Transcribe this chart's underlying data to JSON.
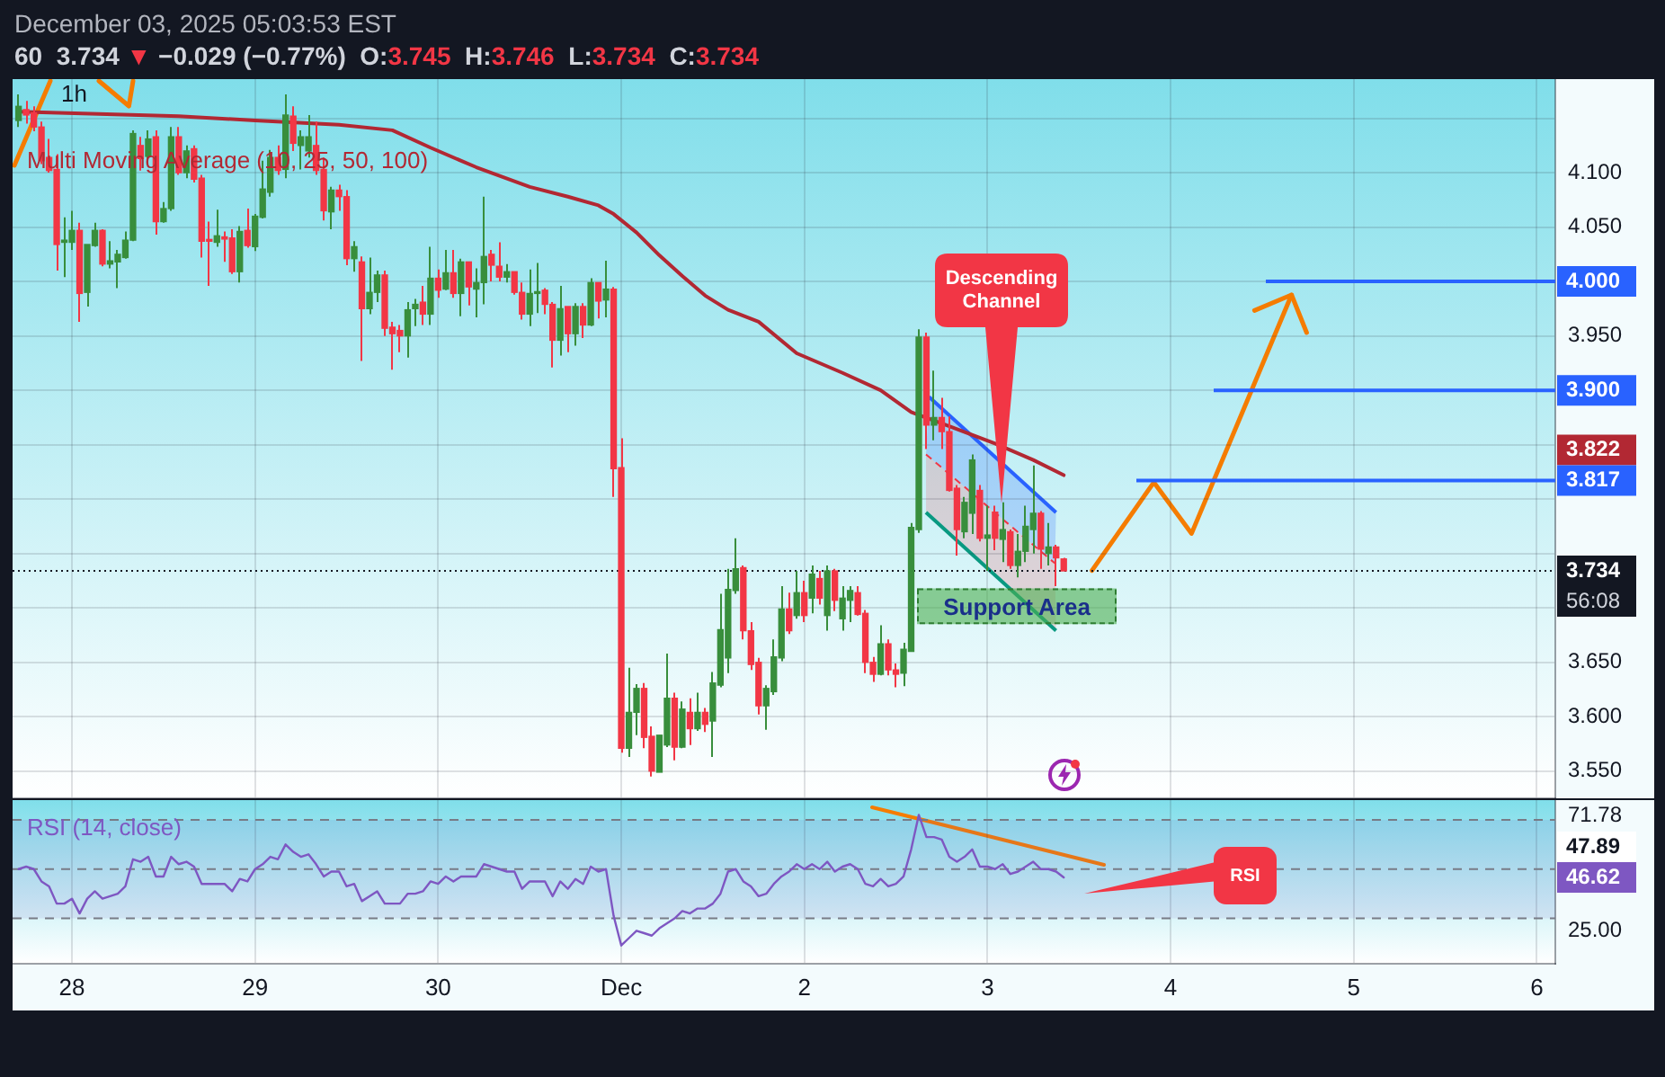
{
  "chart_data": [
    {
      "type": "candlestick",
      "title": "1h",
      "subtitle": "60  3.734 ▼ −0.029 (−0.77%)  O:3.745  H:3.746  L:3.734  C:3.734",
      "annotations": [
        "December 03, 2025 05:03:53 EST",
        "Descending Channel",
        "56:08",
        "3.822"
      ],
      "x": [
        "2025-11-27T17:00",
        "2025-11-27T18:00",
        "2025-11-27T19:00",
        "2025-11-27T20:00",
        "2025-11-27T21:00",
        "2025-11-27T22:00",
        "2025-11-27T23:00",
        "2025-11-28T00:00",
        "2025-11-28T01:00",
        "2025-11-28T02:00",
        "2025-11-28T03:00",
        "2025-11-28T04:00",
        "2025-11-28T05:00",
        "2025-11-28T06:00",
        "2025-11-28T07:00",
        "2025-11-28T08:00",
        "2025-11-28T09:00",
        "2025-11-28T10:00",
        "2025-11-28T11:00",
        "2025-11-28T12:00",
        "2025-11-28T13:00",
        "2025-11-28T14:00",
        "2025-11-28T15:00",
        "2025-11-28T16:00",
        "2025-11-28T17:00",
        "2025-11-28T18:00",
        "2025-11-28T19:00",
        "2025-11-28T20:00",
        "2025-11-28T21:00",
        "2025-11-28T22:00",
        "2025-11-28T23:00",
        "2025-11-29T00:00",
        "2025-11-29T01:00",
        "2025-11-29T02:00",
        "2025-11-29T03:00",
        "2025-11-29T04:00",
        "2025-11-29T05:00",
        "2025-11-29T06:00",
        "2025-11-29T07:00",
        "2025-11-29T08:00",
        "2025-11-29T09:00",
        "2025-11-29T10:00",
        "2025-11-29T11:00",
        "2025-11-29T12:00",
        "2025-11-29T13:00",
        "2025-11-29T14:00",
        "2025-11-29T15:00",
        "2025-11-29T16:00",
        "2025-11-29T17:00",
        "2025-11-29T18:00",
        "2025-11-29T19:00",
        "2025-11-29T20:00",
        "2025-11-29T21:00",
        "2025-11-29T22:00",
        "2025-11-29T23:00",
        "2025-11-30T00:00",
        "2025-11-30T01:00",
        "2025-11-30T02:00",
        "2025-11-30T03:00",
        "2025-11-30T04:00",
        "2025-11-30T05:00",
        "2025-11-30T06:00",
        "2025-11-30T07:00",
        "2025-11-30T08:00",
        "2025-11-30T09:00",
        "2025-11-30T10:00",
        "2025-11-30T11:00",
        "2025-11-30T12:00",
        "2025-11-30T13:00",
        "2025-11-30T14:00",
        "2025-11-30T15:00",
        "2025-11-30T16:00",
        "2025-11-30T17:00",
        "2025-11-30T18:00",
        "2025-11-30T19:00",
        "2025-11-30T20:00",
        "2025-11-30T21:00",
        "2025-11-30T22:00",
        "2025-11-30T23:00",
        "2025-12-01T00:00",
        "2025-12-01T01:00",
        "2025-12-01T02:00",
        "2025-12-01T03:00",
        "2025-12-01T04:00",
        "2025-12-01T05:00",
        "2025-12-01T06:00",
        "2025-12-01T07:00",
        "2025-12-01T08:00",
        "2025-12-01T09:00",
        "2025-12-01T10:00",
        "2025-12-01T11:00",
        "2025-12-01T12:00",
        "2025-12-01T13:00",
        "2025-12-01T14:00",
        "2025-12-01T15:00",
        "2025-12-01T16:00",
        "2025-12-01T17:00",
        "2025-12-01T18:00",
        "2025-12-01T19:00",
        "2025-12-01T20:00",
        "2025-12-01T21:00",
        "2025-12-01T22:00",
        "2025-12-01T23:00",
        "2025-12-02T00:00",
        "2025-12-02T01:00",
        "2025-12-02T02:00",
        "2025-12-02T03:00",
        "2025-12-02T04:00",
        "2025-12-02T05:00",
        "2025-12-02T06:00",
        "2025-12-02T07:00",
        "2025-12-02T08:00",
        "2025-12-02T09:00",
        "2025-12-02T10:00",
        "2025-12-02T11:00",
        "2025-12-02T12:00",
        "2025-12-02T13:00",
        "2025-12-02T14:00",
        "2025-12-02T15:00",
        "2025-12-02T16:00",
        "2025-12-02T17:00",
        "2025-12-02T18:00",
        "2025-12-02T19:00",
        "2025-12-02T20:00",
        "2025-12-02T21:00",
        "2025-12-02T22:00",
        "2025-12-02T23:00",
        "2025-12-03T00:00",
        "2025-12-03T01:00",
        "2025-12-03T02:00",
        "2025-12-03T03:00",
        "2025-12-03T04:00",
        "2025-12-03T05:00",
        "2025-12-03T06:00",
        "2025-12-03T07:00",
        "2025-12-03T08:00",
        "2025-12-03T09:00",
        "2025-12-03T10:00"
      ],
      "ohlc": [
        [
          4.148,
          4.172,
          4.142,
          4.161
        ],
        [
          4.158,
          4.166,
          4.145,
          4.153
        ],
        [
          4.155,
          4.161,
          4.138,
          4.142
        ],
        [
          4.142,
          4.147,
          4.108,
          4.111
        ],
        [
          4.114,
          4.131,
          4.1,
          4.102
        ],
        [
          4.103,
          4.117,
          4.01,
          4.034
        ],
        [
          4.036,
          4.059,
          4.004,
          4.038
        ],
        [
          4.036,
          4.065,
          4.029,
          4.047
        ],
        [
          4.047,
          4.054,
          3.963,
          3.989
        ],
        [
          3.99,
          4.034,
          3.977,
          4.034
        ],
        [
          4.033,
          4.054,
          4.032,
          4.047
        ],
        [
          4.047,
          4.048,
          4.014,
          4.016
        ],
        [
          4.016,
          4.037,
          4.012,
          4.019
        ],
        [
          4.018,
          4.029,
          3.994,
          4.025
        ],
        [
          4.022,
          4.046,
          4.021,
          4.038
        ],
        [
          4.038,
          4.139,
          4.037,
          4.136
        ],
        [
          4.125,
          4.133,
          4.102,
          4.113
        ],
        [
          4.115,
          4.139,
          4.109,
          4.131
        ],
        [
          4.133,
          4.139,
          4.043,
          4.055
        ],
        [
          4.055,
          4.073,
          4.054,
          4.067
        ],
        [
          4.067,
          4.142,
          4.065,
          4.133
        ],
        [
          4.133,
          4.142,
          4.098,
          4.1
        ],
        [
          4.1,
          4.125,
          4.095,
          4.12
        ],
        [
          4.122,
          4.125,
          4.091,
          4.094
        ],
        [
          4.095,
          4.098,
          4.022,
          4.037
        ],
        [
          4.038,
          4.055,
          3.996,
          4.037
        ],
        [
          4.036,
          4.066,
          4.032,
          4.042
        ],
        [
          4.041,
          4.046,
          4.018,
          4.039
        ],
        [
          4.04,
          4.048,
          4.007,
          4.009
        ],
        [
          4.009,
          4.051,
          3.999,
          4.046
        ],
        [
          4.047,
          4.067,
          4.031,
          4.033
        ],
        [
          4.032,
          4.062,
          4.028,
          4.06
        ],
        [
          4.059,
          4.111,
          4.058,
          4.085
        ],
        [
          4.082,
          4.121,
          4.078,
          4.114
        ],
        [
          4.114,
          4.125,
          4.098,
          4.102
        ],
        [
          4.103,
          4.172,
          4.095,
          4.153
        ],
        [
          4.152,
          4.161,
          4.12,
          4.127
        ],
        [
          4.125,
          4.139,
          4.103,
          4.133
        ],
        [
          4.12,
          4.153,
          4.114,
          4.133
        ],
        [
          4.125,
          4.147,
          4.098,
          4.102
        ],
        [
          4.103,
          4.114,
          4.056,
          4.065
        ],
        [
          4.064,
          4.087,
          4.048,
          4.084
        ],
        [
          4.084,
          4.089,
          4.065,
          4.078
        ],
        [
          4.078,
          4.084,
          4.015,
          4.021
        ],
        [
          4.021,
          4.037,
          4.009,
          4.032
        ],
        [
          4.018,
          4.023,
          3.927,
          3.975
        ],
        [
          3.975,
          4.022,
          3.97,
          3.99
        ],
        [
          3.99,
          4.01,
          3.981,
          4.006
        ],
        [
          4.006,
          4.01,
          3.95,
          3.957
        ],
        [
          3.958,
          3.963,
          3.919,
          3.952
        ],
        [
          3.955,
          3.96,
          3.935,
          3.95
        ],
        [
          3.95,
          3.981,
          3.93,
          3.974
        ],
        [
          3.975,
          3.984,
          3.959,
          3.979
        ],
        [
          3.981,
          3.996,
          3.96,
          3.97
        ],
        [
          3.97,
          4.032,
          3.96,
          4.003
        ],
        [
          4.003,
          4.011,
          3.985,
          3.992
        ],
        [
          3.993,
          4.029,
          3.992,
          4.008
        ],
        [
          4.008,
          4.029,
          3.985,
          3.989
        ],
        [
          3.989,
          4.021,
          3.968,
          4.018
        ],
        [
          4.018,
          4.018,
          3.978,
          3.995
        ],
        [
          3.993,
          4.012,
          3.967,
          3.999
        ],
        [
          3.999,
          4.078,
          3.979,
          4.023
        ],
        [
          4.025,
          4.029,
          4.0,
          4.015
        ],
        [
          4.014,
          4.036,
          4.0,
          4.004
        ],
        [
          4.004,
          4.016,
          3.999,
          4.009
        ],
        [
          4.009,
          4.009,
          3.988,
          3.99
        ],
        [
          3.99,
          3.999,
          3.965,
          3.97
        ],
        [
          3.97,
          4.011,
          3.959,
          3.989
        ],
        [
          3.989,
          4.017,
          3.971,
          3.99
        ],
        [
          3.992,
          3.994,
          3.97,
          3.979
        ],
        [
          3.979,
          3.981,
          3.921,
          3.946
        ],
        [
          3.946,
          3.996,
          3.932,
          3.975
        ],
        [
          3.977,
          3.977,
          3.935,
          3.952
        ],
        [
          3.952,
          3.98,
          3.941,
          3.977
        ],
        [
          3.977,
          3.98,
          3.948,
          3.96
        ],
        [
          3.96,
          4.003,
          3.959,
          3.999
        ],
        [
          3.999,
          3.999,
          3.966,
          3.982
        ],
        [
          3.983,
          4.019,
          3.967,
          3.993
        ],
        [
          3.993,
          3.995,
          3.802,
          3.828
        ],
        [
          3.829,
          3.856,
          3.567,
          3.571
        ],
        [
          3.571,
          3.645,
          3.563,
          3.604
        ],
        [
          3.604,
          3.63,
          3.583,
          3.626
        ],
        [
          3.626,
          3.631,
          3.571,
          3.581
        ],
        [
          3.582,
          3.591,
          3.545,
          3.55
        ],
        [
          3.549,
          3.583,
          3.549,
          3.583
        ],
        [
          3.574,
          3.658,
          3.572,
          3.617
        ],
        [
          3.617,
          3.622,
          3.56,
          3.572
        ],
        [
          3.572,
          3.614,
          3.571,
          3.607
        ],
        [
          3.604,
          3.617,
          3.574,
          3.589
        ],
        [
          3.589,
          3.622,
          3.587,
          3.604
        ],
        [
          3.604,
          3.608,
          3.586,
          3.593
        ],
        [
          3.596,
          3.641,
          3.563,
          3.631
        ],
        [
          3.629,
          3.713,
          3.627,
          3.68
        ],
        [
          3.654,
          3.736,
          3.64,
          3.717
        ],
        [
          3.716,
          3.764,
          3.713,
          3.736
        ],
        [
          3.737,
          3.739,
          3.671,
          3.679
        ],
        [
          3.679,
          3.687,
          3.643,
          3.648
        ],
        [
          3.65,
          3.654,
          3.602,
          3.61
        ],
        [
          3.61,
          3.629,
          3.588,
          3.626
        ],
        [
          3.623,
          3.671,
          3.62,
          3.655
        ],
        [
          3.654,
          3.72,
          3.651,
          3.699
        ],
        [
          3.699,
          3.714,
          3.676,
          3.679
        ],
        [
          3.693,
          3.734,
          3.69,
          3.714
        ],
        [
          3.714,
          3.725,
          3.687,
          3.693
        ],
        [
          3.709,
          3.739,
          3.695,
          3.731
        ],
        [
          3.727,
          3.734,
          3.703,
          3.709
        ],
        [
          3.693,
          3.739,
          3.679,
          3.734
        ],
        [
          3.734,
          3.736,
          3.697,
          3.707
        ],
        [
          3.69,
          3.72,
          3.679,
          3.709
        ],
        [
          3.707,
          3.72,
          3.687,
          3.716
        ],
        [
          3.714,
          3.72,
          3.693,
          3.694
        ],
        [
          3.695,
          3.698,
          3.64,
          3.65
        ],
        [
          3.65,
          3.655,
          3.632,
          3.639
        ],
        [
          3.639,
          3.684,
          3.638,
          3.667
        ],
        [
          3.667,
          3.671,
          3.638,
          3.643
        ],
        [
          3.643,
          3.649,
          3.627,
          3.639
        ],
        [
          3.64,
          3.668,
          3.628,
          3.662
        ],
        [
          3.66,
          3.778,
          3.66,
          3.774
        ],
        [
          3.772,
          3.956,
          3.769,
          3.949
        ],
        [
          3.949,
          3.953,
          3.846,
          3.868
        ],
        [
          3.868,
          3.918,
          3.854,
          3.875
        ],
        [
          3.875,
          3.893,
          3.846,
          3.862
        ],
        [
          3.862,
          3.876,
          3.807,
          3.808
        ],
        [
          3.81,
          3.813,
          3.748,
          3.772
        ],
        [
          3.77,
          3.802,
          3.764,
          3.797
        ],
        [
          3.787,
          3.841,
          3.768,
          3.836
        ],
        [
          3.808,
          3.813,
          3.761,
          3.764
        ],
        [
          3.764,
          3.794,
          3.734,
          3.767
        ],
        [
          3.788,
          3.794,
          3.753,
          3.764
        ],
        [
          3.763,
          3.797,
          3.742,
          3.772
        ],
        [
          3.77,
          3.772,
          3.736,
          3.739
        ],
        [
          3.739,
          3.768,
          3.728,
          3.752
        ],
        [
          3.752,
          3.794,
          3.742,
          3.775
        ],
        [
          3.772,
          3.831,
          3.75,
          3.787
        ],
        [
          3.787,
          3.789,
          3.736,
          3.754
        ],
        [
          3.75,
          3.778,
          3.739,
          3.756
        ],
        [
          3.756,
          3.758,
          3.72,
          3.746
        ],
        [
          3.745,
          3.746,
          3.734,
          3.734
        ]
      ],
      "colors": [
        "#388e3c",
        "#f23645",
        "#f23645",
        "#f23645",
        "#f23645",
        "#f23645",
        "#388e3c",
        "#388e3c",
        "#f23645",
        "#388e3c",
        "#388e3c",
        "#f23645",
        "#388e3c",
        "#388e3c",
        "#388e3c",
        "#388e3c",
        "#f23645",
        "#388e3c",
        "#f23645",
        "#388e3c",
        "#388e3c",
        "#f23645",
        "#388e3c",
        "#f23645",
        "#f23645",
        "#f23645",
        "#388e3c",
        "#f23645",
        "#f23645",
        "#388e3c",
        "#f23645",
        "#388e3c",
        "#388e3c",
        "#388e3c",
        "#f23645",
        "#388e3c",
        "#f23645",
        "#388e3c",
        "#388e3c",
        "#f23645",
        "#f23645",
        "#388e3c",
        "#f23645",
        "#f23645",
        "#388e3c",
        "#f23645",
        "#388e3c",
        "#388e3c",
        "#f23645",
        "#f23645",
        "#f23645",
        "#388e3c",
        "#388e3c",
        "#f23645",
        "#388e3c",
        "#f23645",
        "#388e3c",
        "#f23645",
        "#388e3c",
        "#f23645",
        "#388e3c",
        "#388e3c",
        "#f23645",
        "#f23645",
        "#388e3c",
        "#f23645",
        "#f23645",
        "#388e3c",
        "#388e3c",
        "#f23645",
        "#f23645",
        "#388e3c",
        "#f23645",
        "#388e3c",
        "#f23645",
        "#388e3c",
        "#f23645",
        "#388e3c",
        "#f23645",
        "#f23645",
        "#388e3c",
        "#388e3c",
        "#f23645",
        "#f23645",
        "#388e3c",
        "#388e3c",
        "#f23645",
        "#388e3c",
        "#f23645",
        "#388e3c",
        "#f23645",
        "#388e3c",
        "#388e3c",
        "#388e3c",
        "#388e3c",
        "#f23645",
        "#f23645",
        "#f23645",
        "#388e3c",
        "#388e3c",
        "#388e3c",
        "#f23645",
        "#388e3c",
        "#f23645",
        "#388e3c",
        "#f23645",
        "#388e3c",
        "#f23645",
        "#388e3c",
        "#388e3c",
        "#f23645",
        "#f23645",
        "#f23645",
        "#388e3c",
        "#f23645",
        "#f23645",
        "#388e3c",
        "#388e3c",
        "#388e3c",
        "#f23645",
        "#388e3c",
        "#f23645",
        "#f23645",
        "#f23645",
        "#388e3c",
        "#388e3c",
        "#f23645",
        "#388e3c",
        "#f23645",
        "#388e3c",
        "#f23645",
        "#388e3c",
        "#388e3c",
        "#388e3c",
        "#f23645",
        "#388e3c",
        "#f23645",
        "#f23645"
      ],
      "series": [
        {
          "type": "line",
          "name": "Multi Moving Average (10, 25, 50, 100)",
          "color": "#b22833",
          "x": [
            "2025-11-27T17:00",
            "2025-11-28T14:00",
            "2025-11-29T00:00",
            "2025-11-29T11:00",
            "2025-11-29T18:00",
            "2025-11-29T23:00",
            "2025-11-30T05:00",
            "2025-11-30T12:00",
            "2025-11-30T17:00",
            "2025-11-30T21:00",
            "2025-11-30T23:00",
            "2025-12-01T02:00",
            "2025-12-01T05:00",
            "2025-12-01T08:00",
            "2025-12-01T11:00",
            "2025-12-01T14:00",
            "2025-12-01T18:00",
            "2025-12-01T23:00",
            "2025-12-02T05:00",
            "2025-12-02T10:00",
            "2025-12-02T14:00",
            "2025-12-02T19:00",
            "2025-12-03T01:00",
            "2025-12-03T06:00",
            "2025-12-03T10:00"
          ],
          "values": [
            4.156,
            4.152,
            4.148,
            4.144,
            4.139,
            4.123,
            4.105,
            4.087,
            4.078,
            4.07,
            4.062,
            4.045,
            4.024,
            4.005,
            3.987,
            3.974,
            3.963,
            3.934,
            3.916,
            3.9,
            3.88,
            3.867,
            3.851,
            3.836,
            3.822
          ]
        }
      ],
      "xlim": [
        "2025-11-27T16:13",
        "2025-12-06T02:26"
      ],
      "xticks": [
        {
          "value": "2025-11-28",
          "label": null
        },
        {
          "value": "2025-11-29",
          "label": null
        },
        {
          "value": "2025-11-30",
          "label": null
        },
        {
          "value": "2025-12-01",
          "label": null
        },
        {
          "value": "2025-12-02",
          "label": null
        },
        {
          "value": "2025-12-03",
          "label": null
        },
        {
          "value": "2025-12-04",
          "label": null
        },
        {
          "value": "2025-12-05",
          "label": null
        },
        {
          "value": "2025-12-06",
          "label": null
        }
      ],
      "ylim": [
        3.525,
        4.186
      ],
      "yticks": [
        {
          "value": 3.55,
          "label": "3.550"
        },
        {
          "value": 3.6,
          "label": "3.600"
        },
        {
          "value": 3.65,
          "label": "3.650"
        },
        {
          "value": 3.7,
          "label": null
        },
        {
          "value": 3.75,
          "label": null
        },
        {
          "value": 3.8,
          "label": null
        },
        {
          "value": 3.85,
          "label": null
        },
        {
          "value": 3.9,
          "label": null
        },
        {
          "value": 3.95,
          "label": "3.950"
        },
        {
          "value": 4.0,
          "label": null
        },
        {
          "value": 4.05,
          "label": "4.050"
        },
        {
          "value": 4.1,
          "label": "4.100"
        },
        {
          "value": 4.15,
          "label": null
        }
      ],
      "ref_lines": [
        {
          "axis": "y",
          "value": 4.0,
          "label": "4.000",
          "color": "#2962ff"
        },
        {
          "axis": "y",
          "value": 3.9,
          "label": "3.900",
          "color": "#2962ff"
        },
        {
          "axis": "y",
          "value": 3.817,
          "label": "3.817",
          "color": "#2962ff"
        },
        {
          "axis": "y",
          "value": 3.734,
          "label": "3.734",
          "color": "#131722",
          "line_style": "dotted"
        }
      ],
      "bands": [
        {
          "axis": "y",
          "from": 3.685,
          "to": 3.718,
          "label": "Support Area",
          "color": "#4caf50"
        }
      ],
      "grid": true,
      "legend": "top left",
      "tick_labels": "y"
    },
    {
      "type": "line",
      "series": [
        {
          "name": "RSI (14, close)",
          "color": "#7e57c2",
          "values": [
            50,
            51,
            50,
            45,
            43,
            36,
            36,
            38,
            32,
            38,
            41,
            38,
            39,
            40,
            43,
            54,
            53,
            55,
            47,
            47,
            55,
            52,
            53,
            51,
            44,
            44,
            44,
            44,
            41,
            46,
            45,
            50,
            52,
            55,
            54,
            60,
            57,
            55,
            56,
            52,
            47,
            49,
            49,
            43,
            44,
            37,
            39,
            41,
            36,
            36,
            36,
            40,
            40,
            41,
            45,
            44,
            47,
            45,
            47,
            47,
            47,
            52,
            51,
            50,
            49,
            49,
            42,
            45,
            45,
            45,
            39,
            45,
            42,
            46,
            44,
            51,
            49,
            50,
            31,
            19,
            22,
            25,
            24,
            23,
            26,
            28,
            30,
            33,
            32,
            34,
            34,
            36,
            40,
            49,
            50,
            45,
            43,
            39,
            40,
            44,
            47,
            49,
            52,
            50,
            52,
            50,
            53,
            49,
            51,
            52,
            50,
            44,
            43,
            46,
            43,
            44,
            47,
            58,
            72,
            63,
            63,
            62,
            55,
            53,
            55,
            58,
            51,
            51,
            50,
            52,
            48,
            49,
            51,
            53,
            50,
            50,
            49,
            46.62
          ]
        }
      ],
      "x": [
        "2025-11-27T17:00",
        "2025-11-27T18:00",
        "2025-11-27T19:00",
        "2025-11-27T20:00",
        "2025-11-27T21:00",
        "2025-11-27T22:00",
        "2025-11-27T23:00",
        "2025-11-28T00:00",
        "2025-11-28T01:00",
        "2025-11-28T02:00",
        "2025-11-28T03:00",
        "2025-11-28T04:00",
        "2025-11-28T05:00",
        "2025-11-28T06:00",
        "2025-11-28T07:00",
        "2025-11-28T08:00",
        "2025-11-28T09:00",
        "2025-11-28T10:00",
        "2025-11-28T11:00",
        "2025-11-28T12:00",
        "2025-11-28T13:00",
        "2025-11-28T14:00",
        "2025-11-28T15:00",
        "2025-11-28T16:00",
        "2025-11-28T17:00",
        "2025-11-28T18:00",
        "2025-11-28T19:00",
        "2025-11-28T20:00",
        "2025-11-28T21:00",
        "2025-11-28T22:00",
        "2025-11-28T23:00",
        "2025-11-29T00:00",
        "2025-11-29T01:00",
        "2025-11-29T02:00",
        "2025-11-29T03:00",
        "2025-11-29T04:00",
        "2025-11-29T05:00",
        "2025-11-29T06:00",
        "2025-11-29T07:00",
        "2025-11-29T08:00",
        "2025-11-29T09:00",
        "2025-11-29T10:00",
        "2025-11-29T11:00",
        "2025-11-29T12:00",
        "2025-11-29T13:00",
        "2025-11-29T14:00",
        "2025-11-29T15:00",
        "2025-11-29T16:00",
        "2025-11-29T17:00",
        "2025-11-29T18:00",
        "2025-11-29T19:00",
        "2025-11-29T20:00",
        "2025-11-29T21:00",
        "2025-11-29T22:00",
        "2025-11-29T23:00",
        "2025-11-30T00:00",
        "2025-11-30T01:00",
        "2025-11-30T02:00",
        "2025-11-30T03:00",
        "2025-11-30T04:00",
        "2025-11-30T05:00",
        "2025-11-30T06:00",
        "2025-11-30T07:00",
        "2025-11-30T08:00",
        "2025-11-30T09:00",
        "2025-11-30T10:00",
        "2025-11-30T11:00",
        "2025-11-30T12:00",
        "2025-11-30T13:00",
        "2025-11-30T14:00",
        "2025-11-30T15:00",
        "2025-11-30T16:00",
        "2025-11-30T17:00",
        "2025-11-30T18:00",
        "2025-11-30T19:00",
        "2025-11-30T20:00",
        "2025-11-30T21:00",
        "2025-11-30T22:00",
        "2025-11-30T23:00",
        "2025-12-01T00:00",
        "2025-12-01T01:00",
        "2025-12-01T02:00",
        "2025-12-01T03:00",
        "2025-12-01T04:00",
        "2025-12-01T05:00",
        "2025-12-01T06:00",
        "2025-12-01T07:00",
        "2025-12-01T08:00",
        "2025-12-01T09:00",
        "2025-12-01T10:00",
        "2025-12-01T11:00",
        "2025-12-01T12:00",
        "2025-12-01T13:00",
        "2025-12-01T14:00",
        "2025-12-01T15:00",
        "2025-12-01T16:00",
        "2025-12-01T17:00",
        "2025-12-01T18:00",
        "2025-12-01T19:00",
        "2025-12-01T20:00",
        "2025-12-01T21:00",
        "2025-12-01T22:00",
        "2025-12-01T23:00",
        "2025-12-02T00:00",
        "2025-12-02T01:00",
        "2025-12-02T02:00",
        "2025-12-02T03:00",
        "2025-12-02T04:00",
        "2025-12-02T05:00",
        "2025-12-02T06:00",
        "2025-12-02T07:00",
        "2025-12-02T08:00",
        "2025-12-02T09:00",
        "2025-12-02T10:00",
        "2025-12-02T11:00",
        "2025-12-02T12:00",
        "2025-12-02T13:00",
        "2025-12-02T14:00",
        "2025-12-02T15:00",
        "2025-12-02T16:00",
        "2025-12-02T17:00",
        "2025-12-02T18:00",
        "2025-12-02T19:00",
        "2025-12-02T20:00",
        "2025-12-02T21:00",
        "2025-12-02T22:00",
        "2025-12-02T23:00",
        "2025-12-03T00:00",
        "2025-12-03T01:00",
        "2025-12-03T02:00",
        "2025-12-03T03:00",
        "2025-12-03T04:00",
        "2025-12-03T05:00",
        "2025-12-03T06:00",
        "2025-12-03T07:00",
        "2025-12-03T08:00",
        "2025-12-03T09:00",
        "2025-12-03T10:00"
      ],
      "annotations": [
        "RSI",
        "47.89",
        "46.62"
      ],
      "xlim": [
        "2025-11-27T16:13",
        "2025-12-06T02:26"
      ],
      "xticks": [
        {
          "value": "2025-11-28",
          "label": "28"
        },
        {
          "value": "2025-11-29",
          "label": "29"
        },
        {
          "value": "2025-11-30",
          "label": "30"
        },
        {
          "value": "2025-12-01",
          "label": "Dec"
        },
        {
          "value": "2025-12-02",
          "label": "2"
        },
        {
          "value": "2025-12-03",
          "label": "3"
        },
        {
          "value": "2025-12-04",
          "label": "4"
        },
        {
          "value": "2025-12-05",
          "label": "5"
        },
        {
          "value": "2025-12-06",
          "label": "6"
        }
      ],
      "ylim": [
        11.6,
        78
      ],
      "yticks": [
        71.78,
        {
          "value": 25,
          "label": "25.00"
        }
      ],
      "ref_lines": [
        {
          "axis": "y",
          "value": 70,
          "color": "#787b86",
          "line_style": "dashed"
        },
        {
          "axis": "y",
          "value": 50,
          "color": "#787b86",
          "line_style": "dashed"
        },
        {
          "axis": "y",
          "value": 30,
          "color": "#787b86",
          "line_style": "dashed"
        }
      ],
      "bands": [
        {
          "axis": "y",
          "from": 30,
          "to": 70,
          "color": "#7e57c2"
        }
      ],
      "grid": "x",
      "legend": "top left"
    }
  ]
}
